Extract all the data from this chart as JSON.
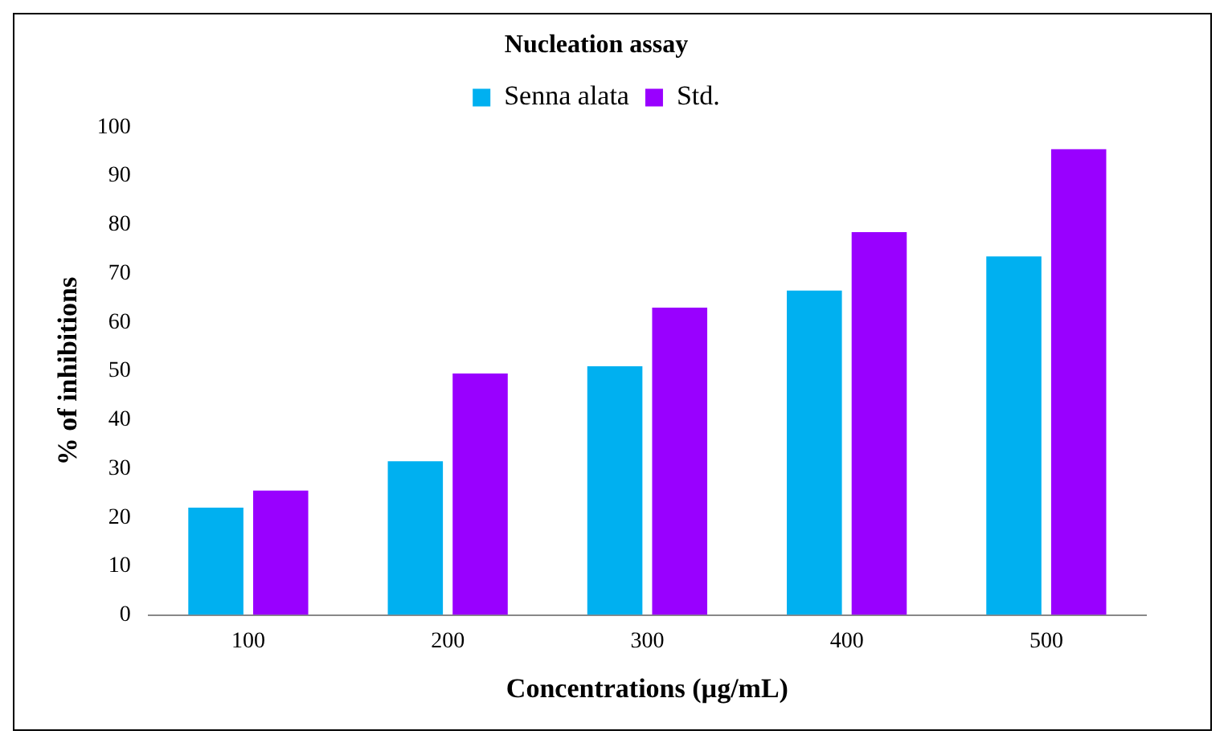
{
  "chart_data": {
    "type": "bar",
    "title": "Nucleation assay",
    "xlabel": "Concentrations (µg/mL)",
    "ylabel": "% of inhibitions",
    "categories": [
      "100",
      "200",
      "300",
      "400",
      "500"
    ],
    "series": [
      {
        "name": "Senna alata",
        "color": "#00b0f0",
        "values": [
          22,
          31.5,
          51,
          66.5,
          73.5
        ]
      },
      {
        "name": "Std.",
        "color": "#9900ff",
        "values": [
          25.5,
          49.5,
          63,
          78.5,
          95.5
        ]
      }
    ],
    "ylim": [
      0,
      100
    ],
    "yticks": [
      0,
      10,
      20,
      30,
      40,
      50,
      60,
      70,
      80,
      90,
      100
    ],
    "grid": false,
    "legend": "top"
  }
}
